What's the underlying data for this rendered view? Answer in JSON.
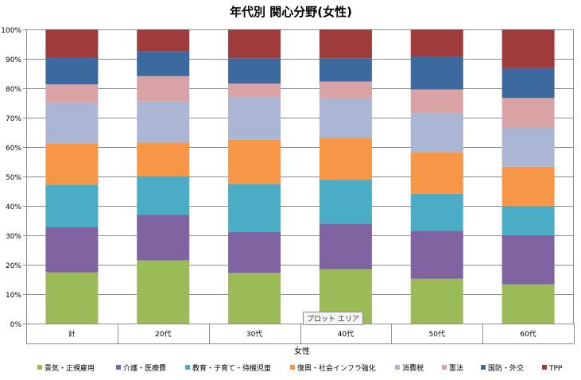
{
  "chart_data": {
    "type": "bar",
    "stacked": true,
    "title": "年代別 関心分野(女性)",
    "xlabel": "女性",
    "ylabel": "",
    "ylim": [
      0,
      100
    ],
    "yticks": [
      "0%",
      "10%",
      "20%",
      "30%",
      "40%",
      "50%",
      "60%",
      "70%",
      "80%",
      "90%",
      "100%"
    ],
    "categories": [
      "計",
      "20代",
      "30代",
      "40代",
      "50代",
      "60代"
    ],
    "grid": true,
    "legend_position": "bottom",
    "series": [
      {
        "name": "景気・正規雇用",
        "color": "#9bbb59",
        "values": [
          17.4,
          21.5,
          17.2,
          18.5,
          15.2,
          13.3
        ]
      },
      {
        "name": "介護・医療費",
        "color": "#8064a2",
        "values": [
          15.3,
          15.5,
          13.9,
          15.4,
          16.3,
          16.7
        ]
      },
      {
        "name": "教育・子育て・待機児童",
        "color": "#4bacc6",
        "values": [
          14.5,
          13.0,
          16.4,
          15.0,
          12.6,
          9.9
        ]
      },
      {
        "name": "復興・社会インフラ強化",
        "color": "#f79646",
        "values": [
          14.1,
          11.5,
          15.0,
          14.2,
          14.2,
          13.4
        ]
      },
      {
        "name": "消費税",
        "color": "#aab6d4",
        "values": [
          13.8,
          14.0,
          14.5,
          13.4,
          13.3,
          13.3
        ]
      },
      {
        "name": "憲法",
        "color": "#d9a3a6",
        "values": [
          6.2,
          8.6,
          4.6,
          5.8,
          8.0,
          10.1
        ]
      },
      {
        "name": "国防・外交",
        "color": "#3d6a9e",
        "values": [
          9.1,
          8.5,
          8.6,
          7.9,
          11.2,
          10.1
        ]
      },
      {
        "name": "TPP",
        "color": "#9e3b3b",
        "values": [
          9.6,
          7.4,
          9.8,
          9.8,
          9.2,
          13.2
        ]
      }
    ]
  },
  "tooltip": "プロット エリア"
}
